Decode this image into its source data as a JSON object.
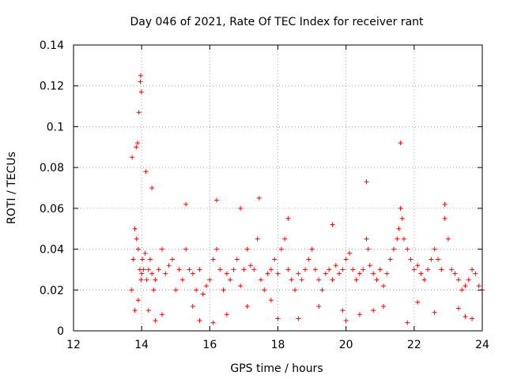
{
  "chart_data": {
    "type": "scatter",
    "title": "Day 046 of 2021, Rate Of TEC Index for receiver rant",
    "xlabel": "GPS time / hours",
    "ylabel": "ROTI / TECUs",
    "xlim": [
      12,
      24
    ],
    "ylim": [
      0,
      0.14
    ],
    "x_ticks": [
      "12",
      "14",
      "16",
      "18",
      "20",
      "22",
      "24"
    ],
    "y_ticks": [
      "0",
      "0.02",
      "0.04",
      "0.06",
      "0.08",
      "0.1",
      "0.12",
      "0.14"
    ],
    "grid": true,
    "legend": "none",
    "marker": "+",
    "color": "#ff0000",
    "series": [
      {
        "x": [
          13.7,
          13.75,
          13.8,
          13.85,
          13.9,
          13.95,
          13.98,
          14.0,
          14.02,
          14.05,
          14.1,
          14.15,
          14.2,
          14.25,
          14.3,
          14.35,
          14.4,
          14.5,
          14.6,
          14.7,
          14.8,
          14.9,
          15.0,
          15.1,
          15.2,
          15.3,
          15.4,
          15.5,
          15.6,
          15.7,
          15.8,
          15.9,
          16.0,
          16.1,
          16.2,
          16.3,
          16.4,
          16.5,
          16.6,
          16.7,
          16.8,
          16.9,
          17.0,
          17.1,
          17.2,
          17.3,
          17.4,
          17.5,
          17.6,
          17.7,
          17.8,
          17.9,
          18.0,
          18.1,
          18.2,
          18.3,
          18.4,
          18.5,
          18.6,
          18.7,
          18.8,
          18.9,
          19.0,
          19.1,
          19.2,
          19.3,
          19.4,
          19.5,
          19.6,
          19.7,
          19.8,
          19.9,
          20.0,
          20.1,
          20.2,
          20.3,
          20.4,
          20.5,
          20.6,
          20.65,
          20.7,
          20.8,
          20.9,
          21.0,
          21.1,
          21.2,
          21.3,
          21.4,
          21.5,
          21.55,
          21.6,
          21.65,
          21.7,
          21.8,
          21.9,
          22.0,
          22.1,
          22.2,
          22.3,
          22.4,
          22.5,
          22.6,
          22.7,
          22.8,
          22.9,
          23.0,
          23.1,
          23.2,
          23.3,
          23.4,
          23.5,
          23.6,
          23.7,
          23.8,
          23.9,
          24.0,
          13.72,
          13.92,
          13.97,
          14.12,
          16.2,
          17.45,
          20.6,
          21.6,
          22.9,
          13.96,
          13.99,
          13.88,
          13.84,
          14.3,
          15.3,
          16.9,
          18.3,
          19.6,
          13.8,
          14.6,
          15.7,
          17.1,
          18.6,
          19.9,
          20.4,
          21.1,
          22.6,
          23.5,
          13.9,
          14.2,
          15.5,
          16.5,
          17.8,
          19.2,
          20.8,
          22.1,
          23.3,
          14.4,
          16.1,
          18.0,
          20.0,
          21.8,
          23.7
        ],
        "y": [
          0.02,
          0.035,
          0.05,
          0.045,
          0.04,
          0.03,
          0.025,
          0.028,
          0.035,
          0.03,
          0.038,
          0.025,
          0.03,
          0.035,
          0.028,
          0.02,
          0.025,
          0.03,
          0.04,
          0.028,
          0.032,
          0.035,
          0.02,
          0.03,
          0.025,
          0.04,
          0.03,
          0.028,
          0.02,
          0.03,
          0.018,
          0.022,
          0.025,
          0.035,
          0.04,
          0.03,
          0.02,
          0.028,
          0.025,
          0.03,
          0.035,
          0.022,
          0.03,
          0.04,
          0.032,
          0.03,
          0.045,
          0.025,
          0.02,
          0.028,
          0.03,
          0.035,
          0.028,
          0.04,
          0.045,
          0.03,
          0.025,
          0.02,
          0.028,
          0.025,
          0.03,
          0.035,
          0.04,
          0.03,
          0.025,
          0.02,
          0.028,
          0.03,
          0.025,
          0.032,
          0.028,
          0.03,
          0.035,
          0.038,
          0.03,
          0.025,
          0.028,
          0.03,
          0.045,
          0.04,
          0.032,
          0.028,
          0.025,
          0.03,
          0.022,
          0.028,
          0.035,
          0.04,
          0.045,
          0.05,
          0.06,
          0.055,
          0.045,
          0.04,
          0.035,
          0.03,
          0.032,
          0.028,
          0.025,
          0.03,
          0.035,
          0.04,
          0.035,
          0.03,
          0.055,
          0.045,
          0.03,
          0.028,
          0.025,
          0.02,
          0.022,
          0.025,
          0.03,
          0.028,
          0.022,
          0.02,
          0.085,
          0.107,
          0.125,
          0.078,
          0.064,
          0.065,
          0.073,
          0.092,
          0.062,
          0.122,
          0.117,
          0.092,
          0.09,
          0.07,
          0.062,
          0.06,
          0.055,
          0.052,
          0.01,
          0.008,
          0.005,
          0.012,
          0.006,
          0.01,
          0.008,
          0.012,
          0.009,
          0.007,
          0.015,
          0.01,
          0.012,
          0.008,
          0.015,
          0.012,
          0.01,
          0.014,
          0.011,
          0.005,
          0.004,
          0.006,
          0.005,
          0.004,
          0.006
        ]
      }
    ]
  }
}
